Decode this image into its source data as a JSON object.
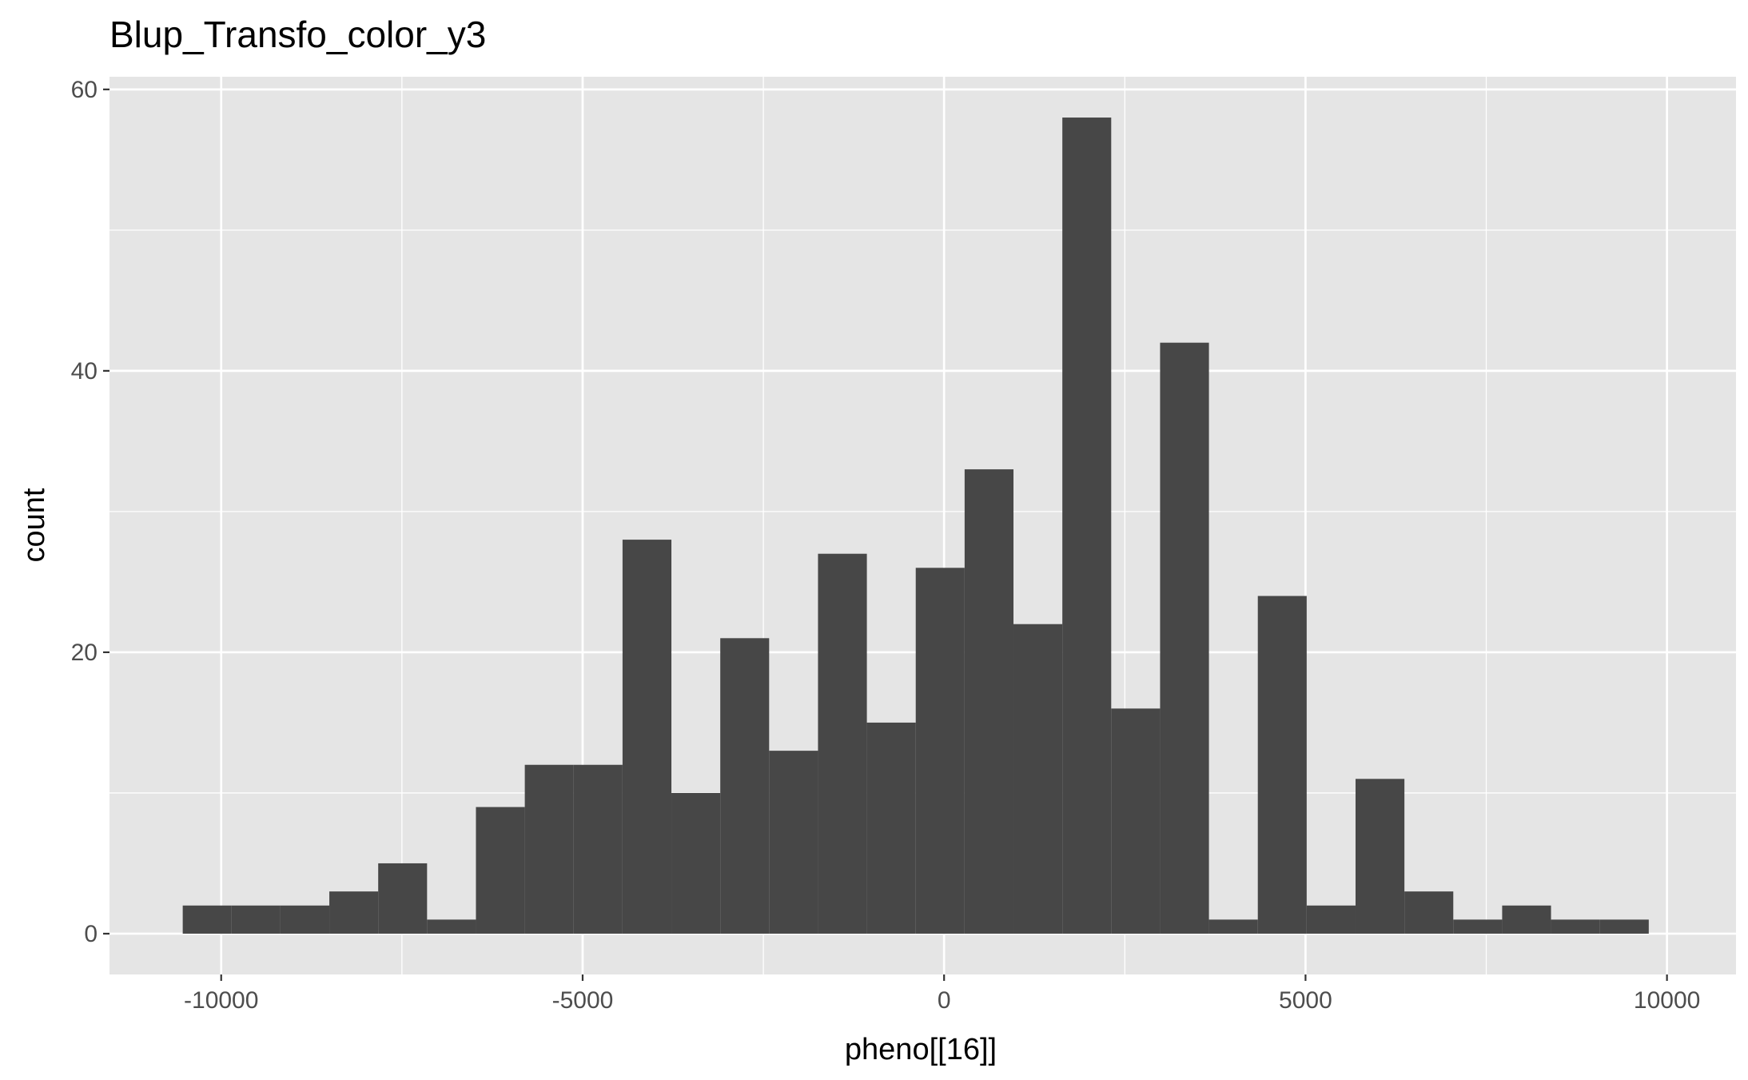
{
  "chart_data": {
    "type": "bar",
    "title": "Blup_Transfo_color_y3",
    "xlabel": "pheno[[16]]",
    "ylabel": "count",
    "xlim": [
      -11545,
      10955
    ],
    "ylim": [
      -2.9,
      60.9
    ],
    "x_ticks": [
      -10000,
      -5000,
      0,
      5000,
      10000
    ],
    "x_tick_labels": [
      "-10000",
      "-5000",
      "0",
      "5000",
      "10000"
    ],
    "y_ticks": [
      0,
      20,
      40,
      60
    ],
    "y_tick_labels": [
      "0",
      "20",
      "40",
      "60"
    ],
    "x_minor_ticks": [
      -7500,
      -2500,
      2500,
      7500
    ],
    "y_minor_ticks": [
      10,
      30,
      50
    ],
    "grid": true,
    "bin_width": 676,
    "bins": [
      {
        "x0": -10532,
        "x1": -9856,
        "count": 2
      },
      {
        "x0": -9856,
        "x1": -9180,
        "count": 2
      },
      {
        "x0": -9180,
        "x1": -8504,
        "count": 2
      },
      {
        "x0": -8504,
        "x1": -7828,
        "count": 3
      },
      {
        "x0": -7828,
        "x1": -7152,
        "count": 5
      },
      {
        "x0": -7152,
        "x1": -6476,
        "count": 1
      },
      {
        "x0": -6476,
        "x1": -5800,
        "count": 9
      },
      {
        "x0": -5800,
        "x1": -5124,
        "count": 12
      },
      {
        "x0": -5124,
        "x1": -4448,
        "count": 12
      },
      {
        "x0": -4448,
        "x1": -3772,
        "count": 28
      },
      {
        "x0": -3772,
        "x1": -3096,
        "count": 10
      },
      {
        "x0": -3096,
        "x1": -2420,
        "count": 21
      },
      {
        "x0": -2420,
        "x1": -1744,
        "count": 13
      },
      {
        "x0": -1744,
        "x1": -1068,
        "count": 27
      },
      {
        "x0": -1068,
        "x1": -392,
        "count": 15
      },
      {
        "x0": -392,
        "x1": 284,
        "count": 26
      },
      {
        "x0": 284,
        "x1": 960,
        "count": 33
      },
      {
        "x0": 960,
        "x1": 1636,
        "count": 22
      },
      {
        "x0": 1636,
        "x1": 2312,
        "count": 58
      },
      {
        "x0": 2312,
        "x1": 2988,
        "count": 16
      },
      {
        "x0": 2988,
        "x1": 3664,
        "count": 42
      },
      {
        "x0": 3664,
        "x1": 4340,
        "count": 1
      },
      {
        "x0": 4340,
        "x1": 5016,
        "count": 24
      },
      {
        "x0": 5016,
        "x1": 5692,
        "count": 2
      },
      {
        "x0": 5692,
        "x1": 6368,
        "count": 11
      },
      {
        "x0": 6368,
        "x1": 7044,
        "count": 3
      },
      {
        "x0": 7044,
        "x1": 7720,
        "count": 1
      },
      {
        "x0": 7720,
        "x1": 8396,
        "count": 2
      },
      {
        "x0": 8396,
        "x1": 9072,
        "count": 1
      },
      {
        "x0": 9072,
        "x1": 9748,
        "count": 1
      }
    ],
    "colors": {
      "bar": "#474747",
      "panel": "#e5e5e5",
      "grid": "#ffffff",
      "tick_text": "#4d4d4d",
      "tick_mark": "#333333"
    }
  }
}
